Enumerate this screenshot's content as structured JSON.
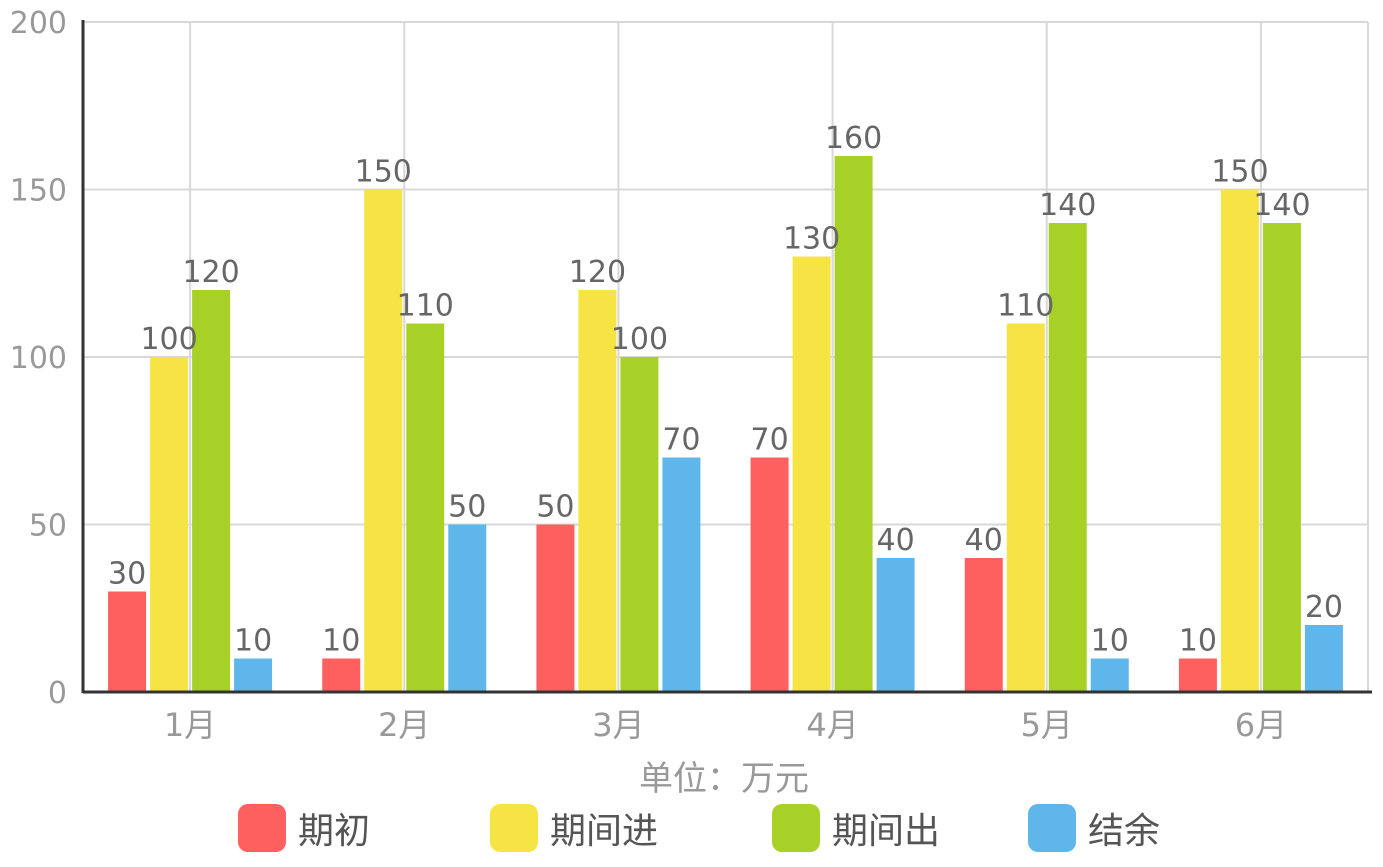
{
  "chart_data": {
    "type": "bar",
    "categories": [
      "1月",
      "2月",
      "3月",
      "4月",
      "5月",
      "6月"
    ],
    "series": [
      {
        "name": "期初",
        "color": "#fe5f5f",
        "values": [
          30,
          10,
          50,
          70,
          40,
          10
        ]
      },
      {
        "name": "期间进",
        "color": "#f5e444",
        "values": [
          100,
          150,
          120,
          130,
          110,
          150
        ]
      },
      {
        "name": "期间出",
        "color": "#a8d128",
        "values": [
          120,
          110,
          100,
          160,
          140,
          140
        ]
      },
      {
        "name": "结余",
        "color": "#5fb6ea",
        "values": [
          10,
          50,
          70,
          40,
          10,
          20
        ]
      }
    ],
    "yticks": [
      0,
      50,
      100,
      150,
      200
    ],
    "ylim": [
      0,
      200
    ],
    "xlabel": "单位：万元",
    "ylabel": "",
    "title": "",
    "grid": true,
    "legend_position": "bottom",
    "data_labels": true
  }
}
